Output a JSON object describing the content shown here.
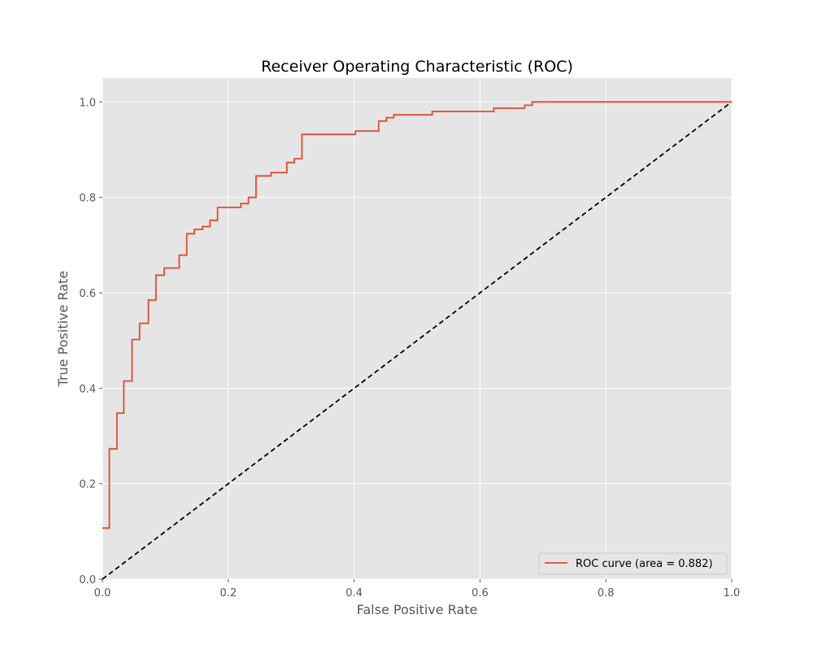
{
  "chart_data": {
    "type": "line",
    "title": "Receiver Operating Characteristic (ROC)",
    "xlabel": "False Positive Rate",
    "ylabel": "True Positive Rate",
    "xlim": [
      0.0,
      1.0
    ],
    "ylim": [
      0.0,
      1.05
    ],
    "xticks": [
      "0.0",
      "0.2",
      "0.4",
      "0.6",
      "0.8",
      "1.0"
    ],
    "yticks": [
      "0.0",
      "0.2",
      "0.4",
      "0.6",
      "0.8",
      "1.0"
    ],
    "grid": true,
    "legend_position": "lower-right",
    "series": [
      {
        "name": "ROC curve (area = 0.882)",
        "color": "#e24a33",
        "step": true,
        "x": [
          0.0,
          0.011,
          0.011,
          0.023,
          0.023,
          0.034,
          0.034,
          0.047,
          0.047,
          0.059,
          0.059,
          0.073,
          0.073,
          0.085,
          0.085,
          0.098,
          0.098,
          0.122,
          0.122,
          0.134,
          0.134,
          0.146,
          0.146,
          0.159,
          0.159,
          0.171,
          0.171,
          0.183,
          0.183,
          0.22,
          0.22,
          0.232,
          0.232,
          0.244,
          0.244,
          0.268,
          0.268,
          0.293,
          0.293,
          0.305,
          0.305,
          0.317,
          0.317,
          0.402,
          0.402,
          0.439,
          0.439,
          0.451,
          0.451,
          0.463,
          0.463,
          0.524,
          0.524,
          0.622,
          0.622,
          0.671,
          0.671,
          0.683,
          0.683,
          1.0
        ],
        "y": [
          0.107,
          0.107,
          0.273,
          0.273,
          0.348,
          0.348,
          0.415,
          0.415,
          0.502,
          0.502,
          0.536,
          0.536,
          0.585,
          0.585,
          0.637,
          0.637,
          0.652,
          0.652,
          0.679,
          0.679,
          0.724,
          0.724,
          0.733,
          0.733,
          0.739,
          0.739,
          0.752,
          0.752,
          0.779,
          0.779,
          0.787,
          0.787,
          0.8,
          0.8,
          0.845,
          0.845,
          0.852,
          0.852,
          0.873,
          0.873,
          0.881,
          0.881,
          0.932,
          0.932,
          0.939,
          0.939,
          0.96,
          0.96,
          0.967,
          0.967,
          0.973,
          0.973,
          0.98,
          0.98,
          0.987,
          0.987,
          0.993,
          0.993,
          1.0,
          1.0
        ]
      },
      {
        "color": "#000000",
        "style": "dashed",
        "x": [
          0.0,
          1.0
        ],
        "y": [
          0.0,
          1.0
        ]
      }
    ]
  }
}
